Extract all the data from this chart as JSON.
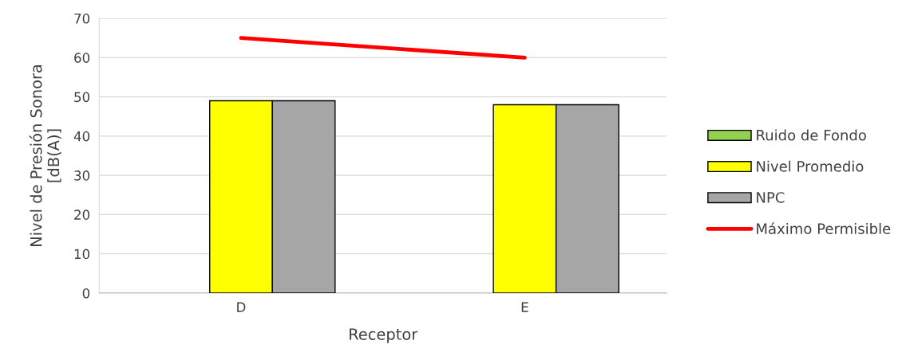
{
  "chart_data": {
    "type": "bar",
    "xlabel": "Receptor",
    "ylabel": "Nivel de Presión Sonora\n[dB(A)]",
    "categories": [
      "D",
      "E"
    ],
    "series": [
      {
        "name": "Ruido de Fondo",
        "color": "#92d050",
        "values": [
          null,
          null
        ]
      },
      {
        "name": "Nivel Promedio",
        "color": "#ffff00",
        "values": [
          49,
          48
        ]
      },
      {
        "name": "NPC",
        "color": "#a6a6a6",
        "values": [
          49,
          48
        ]
      },
      {
        "name": "Máximo Permisible",
        "color": "#ff0000",
        "type": "line",
        "values": [
          65,
          60
        ]
      }
    ],
    "ylim": [
      0,
      70
    ],
    "yticks": [
      0,
      10,
      20,
      30,
      40,
      50,
      60,
      70
    ],
    "grid": "y",
    "legend": "right"
  }
}
